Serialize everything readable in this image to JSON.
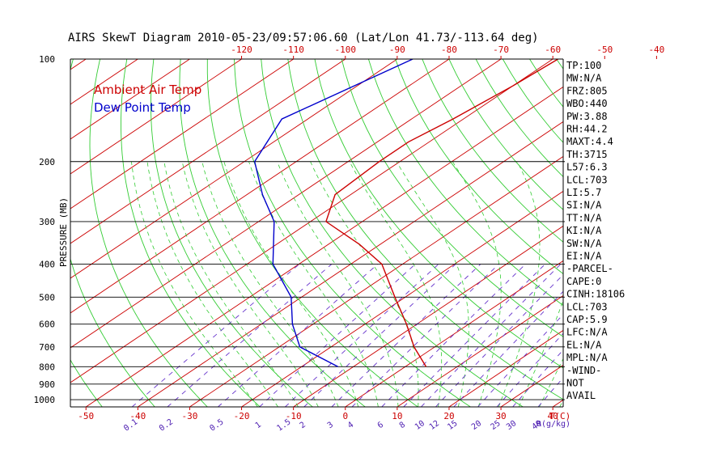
{
  "chart_data": {
    "type": "line",
    "chart_kind": "skew-t log-p diagram",
    "title": "AIRS SkewT Diagram 2010-05-23/09:57:06.60 (Lat/Lon 41.73/-113.64 deg)",
    "ylabel": "PRESSURE (MB)",
    "xlabel_bottom_unit": "T(C)",
    "mixing_ratio_unit": "R(g/kg)",
    "y_scale": "log",
    "ylim": [
      1050,
      100
    ],
    "xlim_bottom": [
      -53,
      42
    ],
    "pressure_ticks": [
      100,
      200,
      300,
      400,
      500,
      600,
      700,
      800,
      900,
      1000
    ],
    "pressure_lines": [
      200,
      300,
      400,
      500,
      600,
      700,
      800,
      900,
      1000
    ],
    "bottom_temp_ticks": [
      -50,
      -40,
      -30,
      -20,
      -10,
      0,
      10,
      20,
      30,
      40
    ],
    "top_temp_ticks": [
      -120,
      -110,
      -100,
      -90,
      -80,
      -70,
      -60,
      -50,
      -40
    ],
    "mixing_ratio_labels": [
      "0.1",
      "0.2",
      "0.5",
      "1",
      "1.5",
      "2",
      "3",
      "4",
      "6",
      "8",
      "10",
      "12",
      "15",
      "20",
      "25",
      "30",
      "40"
    ],
    "legend": [
      {
        "name": "Ambient Air Temp",
        "color": "#cc0000"
      },
      {
        "name": "Dew Point Temp",
        "color": "#0000cc"
      }
    ],
    "series": [
      {
        "name": "Ambient Air Temp",
        "color": "#cc0000",
        "points": [
          {
            "p": 100,
            "t": -59
          },
          {
            "p": 120,
            "t": -60
          },
          {
            "p": 150,
            "t": -62
          },
          {
            "p": 175,
            "t": -64
          },
          {
            "p": 200,
            "t": -64
          },
          {
            "p": 250,
            "t": -63
          },
          {
            "p": 300,
            "t": -57
          },
          {
            "p": 350,
            "t": -44
          },
          {
            "p": 400,
            "t": -34
          },
          {
            "p": 500,
            "t": -22
          },
          {
            "p": 600,
            "t": -12
          },
          {
            "p": 700,
            "t": -4
          },
          {
            "p": 800,
            "t": 4
          }
        ]
      },
      {
        "name": "Dew Point Temp",
        "color": "#0000cc",
        "points": [
          {
            "p": 100,
            "t": -87
          },
          {
            "p": 150,
            "t": -95
          },
          {
            "p": 200,
            "t": -88
          },
          {
            "p": 250,
            "t": -77
          },
          {
            "p": 300,
            "t": -67
          },
          {
            "p": 400,
            "t": -55
          },
          {
            "p": 500,
            "t": -42
          },
          {
            "p": 600,
            "t": -34
          },
          {
            "p": 700,
            "t": -26
          },
          {
            "p": 800,
            "t": -13
          }
        ]
      }
    ]
  },
  "indices": [
    "TP:100",
    "MW:N/A",
    "FRZ:805",
    "WBO:440",
    "PW:3.88",
    "RH:44.2",
    "MAXT:4.4",
    "TH:3715",
    "L57:6.3",
    "LCL:703",
    "LI:5.7",
    "SI:N/A",
    "TT:N/A",
    "KI:N/A",
    "SW:N/A",
    "EI:N/A",
    "-PARCEL-",
    "CAPE:0",
    "CINH:18106",
    "LCL:703",
    "CAP:5.9",
    "LFC:N/A",
    "EL:N/A",
    "MPL:N/A",
    "-WIND-",
    "NOT",
    "AVAIL"
  ],
  "colors": {
    "temperature": "#cc0000",
    "dewpoint": "#0000cc",
    "isotherm": "#cc0000",
    "dry_adiabat": "#33cc33",
    "moist_adiabat": "#33cc33",
    "mixing_ratio": "#6633cc",
    "isobar": "#000000"
  }
}
